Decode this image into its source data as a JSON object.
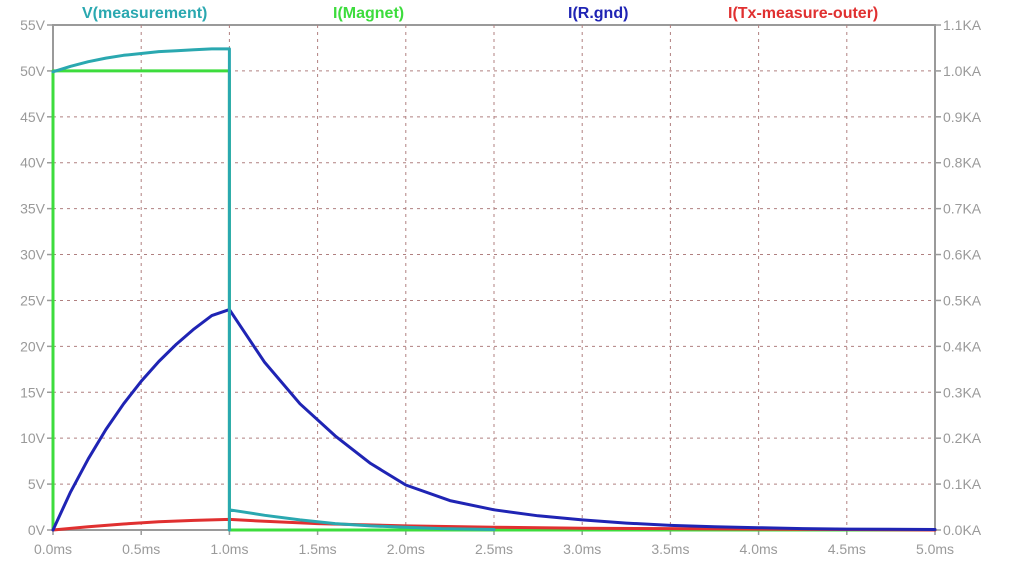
{
  "chart_data": {
    "type": "line",
    "x_unit": "ms",
    "xlim": [
      0,
      5
    ],
    "left_axis": {
      "unit": "V",
      "ylim": [
        0,
        55
      ]
    },
    "right_axis": {
      "unit": "KA",
      "ylim": [
        0,
        1.1
      ]
    },
    "x_ticks": [
      "0.0ms",
      "0.5ms",
      "1.0ms",
      "1.5ms",
      "2.0ms",
      "2.5ms",
      "3.0ms",
      "3.5ms",
      "4.0ms",
      "4.5ms",
      "5.0ms"
    ],
    "left_ticks": [
      "0V",
      "5V",
      "10V",
      "15V",
      "20V",
      "25V",
      "30V",
      "35V",
      "40V",
      "45V",
      "50V",
      "55V"
    ],
    "right_ticks": [
      "0.0KA",
      "0.1KA",
      "0.2KA",
      "0.3KA",
      "0.4KA",
      "0.5KA",
      "0.6KA",
      "0.7KA",
      "0.8KA",
      "0.9KA",
      "1.0KA",
      "1.1KA"
    ],
    "grid": true,
    "legend_position": "top",
    "series": [
      {
        "name": "V(measurement)",
        "color": "#2aa8b0",
        "axis": "left",
        "x": [
          0,
          0.1,
          0.2,
          0.3,
          0.4,
          0.5,
          0.6,
          0.7,
          0.8,
          0.9,
          1.0,
          1.0,
          1.0,
          1.0,
          1.2,
          1.4,
          1.6,
          1.8,
          2.0,
          2.2,
          2.5
        ],
        "y": [
          49.9,
          50.5,
          51.0,
          51.4,
          51.7,
          51.9,
          52.1,
          52.2,
          52.3,
          52.4,
          52.4,
          50.0,
          0,
          2.2,
          1.6,
          1.1,
          0.7,
          0.45,
          0.3,
          0.15,
          0.05
        ]
      },
      {
        "name": "I(Magnet)",
        "color": "#3ddc3d",
        "axis": "right",
        "x": [
          0,
          0,
          1.0,
          1.0,
          5.0
        ],
        "y": [
          0,
          1.0,
          1.0,
          0,
          0
        ]
      },
      {
        "name": "I(R.gnd)",
        "color": "#1f24b4",
        "axis": "right",
        "x": [
          0,
          0.1,
          0.2,
          0.3,
          0.4,
          0.5,
          0.6,
          0.7,
          0.8,
          0.9,
          1.0,
          1.2,
          1.4,
          1.6,
          1.8,
          2.0,
          2.25,
          2.5,
          2.75,
          3.0,
          3.25,
          3.5,
          3.75,
          4.0,
          4.25,
          4.5,
          5.0
        ],
        "y": [
          0,
          0.083,
          0.155,
          0.219,
          0.275,
          0.324,
          0.367,
          0.405,
          0.438,
          0.467,
          0.48,
          0.365,
          0.275,
          0.205,
          0.145,
          0.098,
          0.064,
          0.044,
          0.031,
          0.022,
          0.015,
          0.01,
          0.007,
          0.005,
          0.003,
          0.002,
          0.001
        ]
      },
      {
        "name": "I(Tx-measure-outer)",
        "color": "#e03030",
        "axis": "right",
        "x": [
          0,
          0.2,
          0.4,
          0.6,
          0.8,
          1.0,
          1.2,
          1.5,
          2.0,
          2.5,
          3.0,
          3.5,
          4.0,
          4.5,
          5.0
        ],
        "y": [
          0,
          0.007,
          0.013,
          0.018,
          0.021,
          0.023,
          0.019,
          0.014,
          0.009,
          0.006,
          0.004,
          0.003,
          0.002,
          0.001,
          0
        ]
      }
    ]
  }
}
